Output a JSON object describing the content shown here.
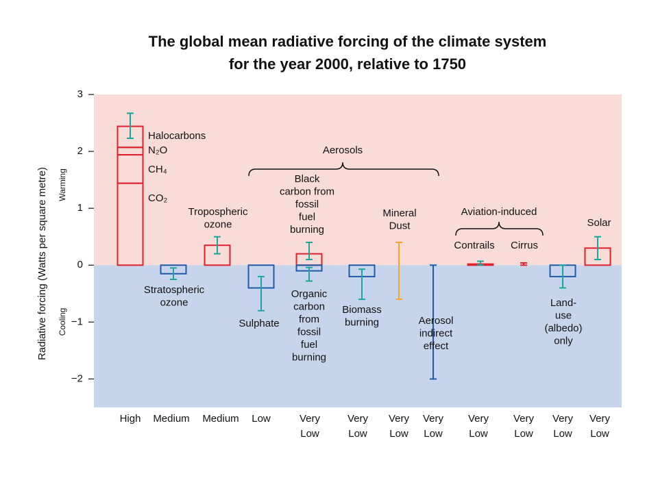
{
  "chart_data": {
    "type": "bar",
    "title": "The global mean radiative forcing of the climate system\nfor the year 2000, relative to 1750",
    "ylabel": "Radiative forcing  (Watts per square metre)",
    "warming_label": "Warming",
    "cooling_label": "Cooling",
    "ylim": [
      -2.5,
      3
    ],
    "yticks": [
      3,
      2,
      1,
      0,
      {
        "value": -1,
        "label": "−1"
      },
      {
        "value": -2,
        "label": "−2"
      }
    ],
    "warming_color": "#f9dcd8",
    "cooling_color": "#c6d5ec",
    "bar_color": "#e0202a",
    "range_color": "#1aa69e",
    "categories": [
      "High",
      "Medium",
      "Medium",
      "Low",
      "Very Low",
      "Very Low",
      "Very Low",
      "Very Low",
      "Very Low",
      "Very Low",
      "Very Low",
      "Very Low"
    ],
    "bars": [
      [
        {
          "segments": [
            1.44,
            0.5,
            0.13,
            0.37
          ],
          "range": [
            2.23,
            2.67
          ]
        }
      ],
      [
        {
          "value": -0.15,
          "range": [
            -0.25,
            -0.05
          ]
        }
      ],
      [
        {
          "value": 0.35,
          "range": [
            0.2,
            0.5
          ]
        }
      ],
      [
        {
          "value": -0.4,
          "range": [
            -0.8,
            -0.2
          ]
        }
      ],
      [
        {
          "value": 0.2,
          "range": [
            0.1,
            0.4
          ]
        },
        {
          "value": -0.1,
          "range": [
            -0.28,
            -0.04
          ]
        }
      ],
      [
        {
          "value": -0.2,
          "range": [
            -0.6,
            -0.07
          ]
        }
      ],
      [
        {
          "range": [
            -0.6,
            0.4
          ],
          "range_color": "#f2a629"
        }
      ],
      [
        {
          "range": [
            -2,
            0
          ],
          "range_color": "#1f5aa8"
        }
      ],
      [
        {
          "value": 0.02,
          "range": [
            0.005,
            0.07
          ]
        }
      ],
      [
        {
          "range": [
            0,
            0.04
          ],
          "range_color": "#e0202a"
        }
      ],
      [
        {
          "value": -0.2,
          "range": [
            -0.4,
            0
          ]
        }
      ],
      [
        {
          "value": 0.3,
          "range": [
            0.1,
            0.5
          ]
        }
      ]
    ],
    "annotations": [
      "Halocarbons",
      "N₂O",
      "CH₄",
      "CO₂",
      "Tropospheric\nozone",
      "Stratospheric\nozone",
      "Aerosols",
      "Black\ncarbon from\nfossil\nfuel\nburning",
      "Organic\ncarbon\nfrom\nfossil\nfuel\nburning",
      "Sulphate",
      "Biomass\nburning",
      "Mineral\nDust",
      "Aerosol\nindirect\neffect",
      "Aviation-induced",
      "Contrails",
      "Cirrus",
      "Solar",
      "Land-\nuse\n(albedo)\nonly"
    ]
  }
}
